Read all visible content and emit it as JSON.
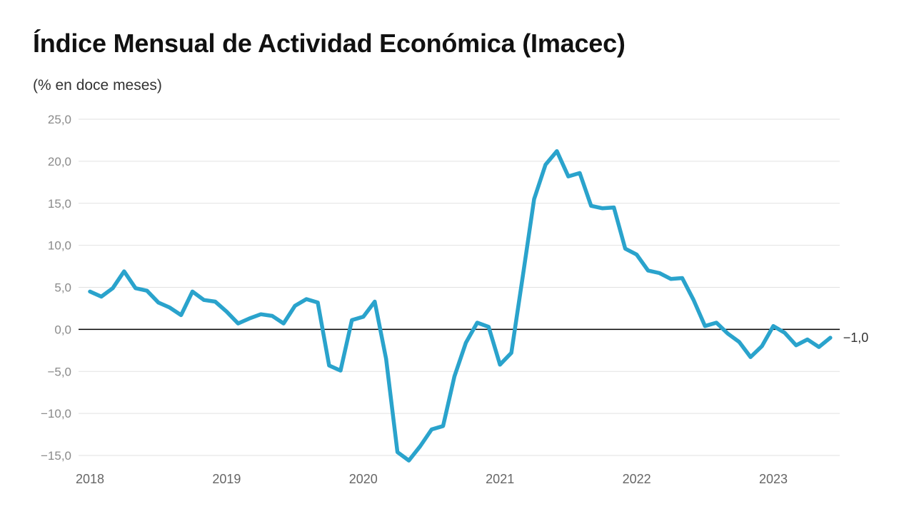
{
  "chart_data": {
    "type": "line",
    "title": "Índice Mensual de Actividad Económica (Imacec)",
    "subtitle": "(% en doce meses)",
    "xlabel": "",
    "ylabel": "",
    "ylim": [
      -15,
      25
    ],
    "yticks": [
      25,
      20,
      15,
      10,
      5,
      0,
      -5,
      -10,
      -15
    ],
    "ytick_labels": [
      "25,0",
      "20,0",
      "15,0",
      "10,0",
      "5,0",
      "0,0",
      "−5,0",
      "−10,0",
      "−15,0"
    ],
    "xticks": [
      "2018",
      "2019",
      "2020",
      "2021",
      "2022",
      "2023"
    ],
    "grid": true,
    "color": "#2aa3cc",
    "end_label": "−1,0",
    "series": [
      {
        "x": [
          "2018-01",
          "2018-02",
          "2018-03",
          "2018-04",
          "2018-05",
          "2018-06",
          "2018-07",
          "2018-08",
          "2018-09",
          "2018-10",
          "2018-11",
          "2018-12",
          "2019-01",
          "2019-02",
          "2019-03",
          "2019-04",
          "2019-05",
          "2019-06",
          "2019-07",
          "2019-08",
          "2019-09",
          "2019-10",
          "2019-11",
          "2019-12",
          "2020-01",
          "2020-02",
          "2020-03",
          "2020-04",
          "2020-05",
          "2020-06",
          "2020-07",
          "2020-08",
          "2020-09",
          "2020-10",
          "2020-11",
          "2020-12",
          "2021-01",
          "2021-02",
          "2021-03",
          "2021-04",
          "2021-05",
          "2021-06",
          "2021-07",
          "2021-08",
          "2021-09",
          "2021-10",
          "2021-11",
          "2021-12",
          "2022-01",
          "2022-02",
          "2022-03",
          "2022-04",
          "2022-05",
          "2022-06",
          "2022-07",
          "2022-08",
          "2022-09",
          "2022-10",
          "2022-11",
          "2022-12",
          "2023-01",
          "2023-02",
          "2023-03",
          "2023-04",
          "2023-05",
          "2023-06"
        ],
        "values": [
          4.5,
          3.9,
          4.9,
          6.9,
          4.9,
          4.6,
          3.2,
          2.6,
          1.7,
          4.5,
          3.5,
          3.3,
          2.1,
          0.7,
          1.3,
          1.8,
          1.6,
          0.7,
          2.8,
          3.6,
          3.2,
          -4.3,
          -4.9,
          1.1,
          1.5,
          3.3,
          -3.5,
          -14.6,
          -15.6,
          -13.9,
          -11.9,
          -11.5,
          -5.6,
          -1.6,
          0.8,
          0.3,
          -4.2,
          -2.8,
          6.3,
          15.5,
          19.6,
          21.2,
          18.2,
          18.6,
          14.7,
          14.4,
          14.5,
          9.6,
          8.9,
          7.0,
          6.7,
          6.0,
          6.1,
          3.5,
          0.4,
          0.8,
          -0.5,
          -1.5,
          -3.3,
          -2.0,
          0.4,
          -0.4,
          -1.9,
          -1.2,
          -2.1,
          -1.0
        ]
      }
    ]
  }
}
